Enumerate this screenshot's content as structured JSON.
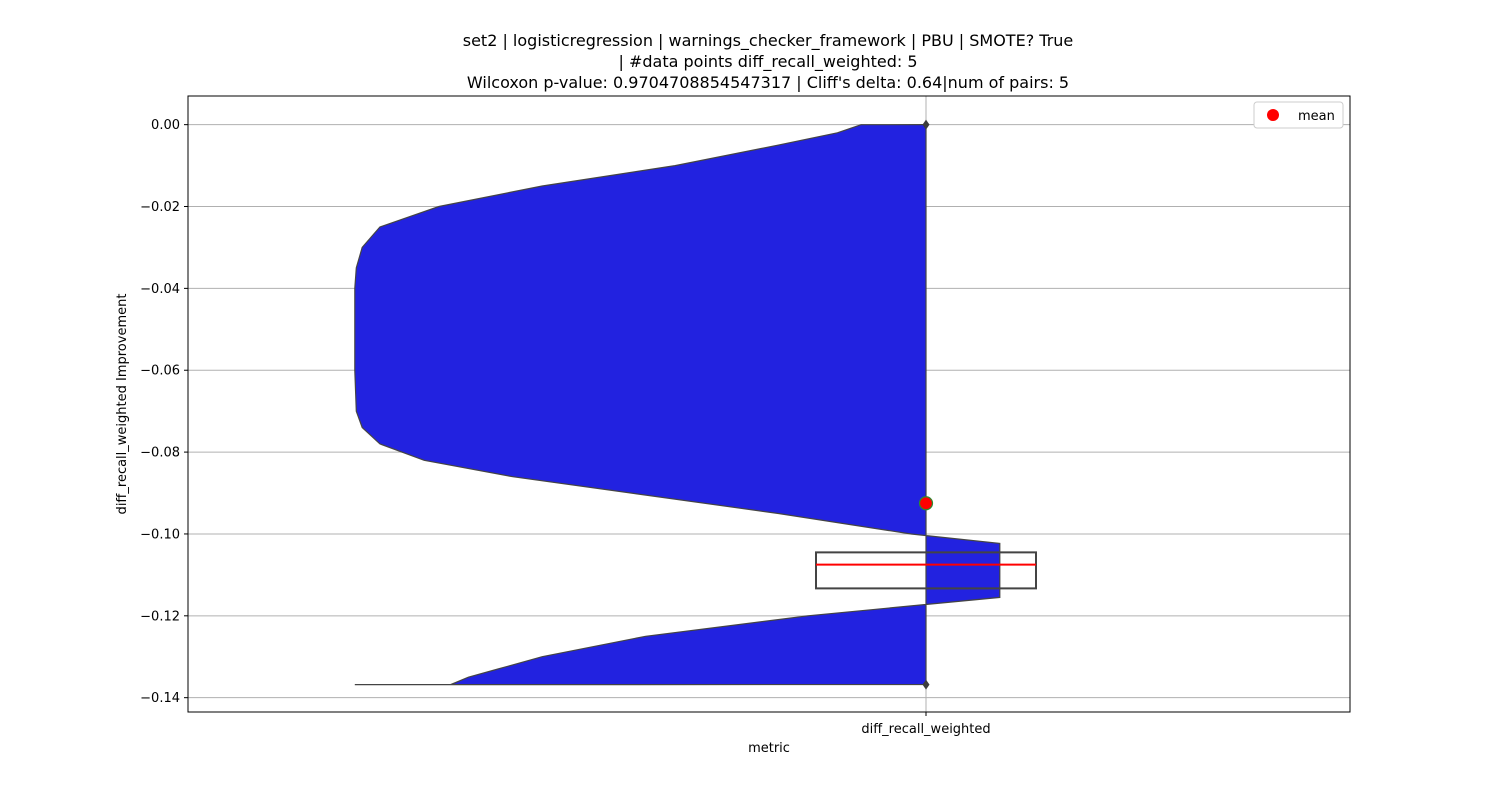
{
  "chart_data": {
    "type": "violin",
    "title_lines": [
      "set2 | logisticregression | warnings_checker_framework | PBU | SMOTE? True",
      "| #data points diff_recall_weighted: 5",
      "Wilcoxon p-value: 0.9704708854547317 | Cliff's delta: 0.64|num of pairs: 5"
    ],
    "xlabel": "metric",
    "ylabel": "diff_recall_weighted Improvement",
    "categories": [
      "diff_recall_weighted"
    ],
    "ylim": [
      -0.1435,
      0.007
    ],
    "yticks": [
      0.0,
      -0.02,
      -0.04,
      -0.06,
      -0.08,
      -0.1,
      -0.12,
      -0.14
    ],
    "ytick_labels": [
      "0.00",
      "−0.02",
      "−0.04",
      "−0.06",
      "−0.08",
      "−0.10",
      "−0.12",
      "−0.14"
    ],
    "grid": true,
    "legend": {
      "position": "top-right",
      "entries": [
        {
          "label": "mean",
          "color": "#ff0000"
        }
      ]
    },
    "violin": {
      "color": "#2222e0",
      "side": "left",
      "profile": [
        [
          0.0,
          0.044
        ],
        [
          -0.002,
          0.06
        ],
        [
          -0.005,
          0.1
        ],
        [
          -0.01,
          0.17
        ],
        [
          -0.015,
          0.26
        ],
        [
          -0.02,
          0.33
        ],
        [
          -0.025,
          0.37
        ],
        [
          -0.03,
          0.382
        ],
        [
          -0.035,
          0.386
        ],
        [
          -0.04,
          0.387
        ],
        [
          -0.05,
          0.387
        ],
        [
          -0.06,
          0.387
        ],
        [
          -0.07,
          0.386
        ],
        [
          -0.074,
          0.382
        ],
        [
          -0.078,
          0.37
        ],
        [
          -0.082,
          0.34
        ],
        [
          -0.086,
          0.28
        ],
        [
          -0.09,
          0.2
        ],
        [
          -0.095,
          0.1
        ],
        [
          -0.1,
          0.01
        ],
        [
          -0.1023,
          -0.05
        ],
        [
          -0.1155,
          -0.05
        ],
        [
          -0.12,
          0.08
        ],
        [
          -0.125,
          0.19
        ],
        [
          -0.13,
          0.26
        ],
        [
          -0.133,
          0.29
        ],
        [
          -0.135,
          0.31
        ],
        [
          -0.1368,
          0.322
        ],
        [
          -0.1368,
          0.387
        ]
      ]
    },
    "box": {
      "q1": -0.1133,
      "median": -0.1075,
      "q3": -0.1045,
      "outliers": [
        0.0,
        -0.1368
      ],
      "mean": -0.0925,
      "box_color": "#444444",
      "median_color": "#ff0000",
      "mean_color": "#ff0000",
      "mean_edge": "#2e8b2e"
    }
  }
}
